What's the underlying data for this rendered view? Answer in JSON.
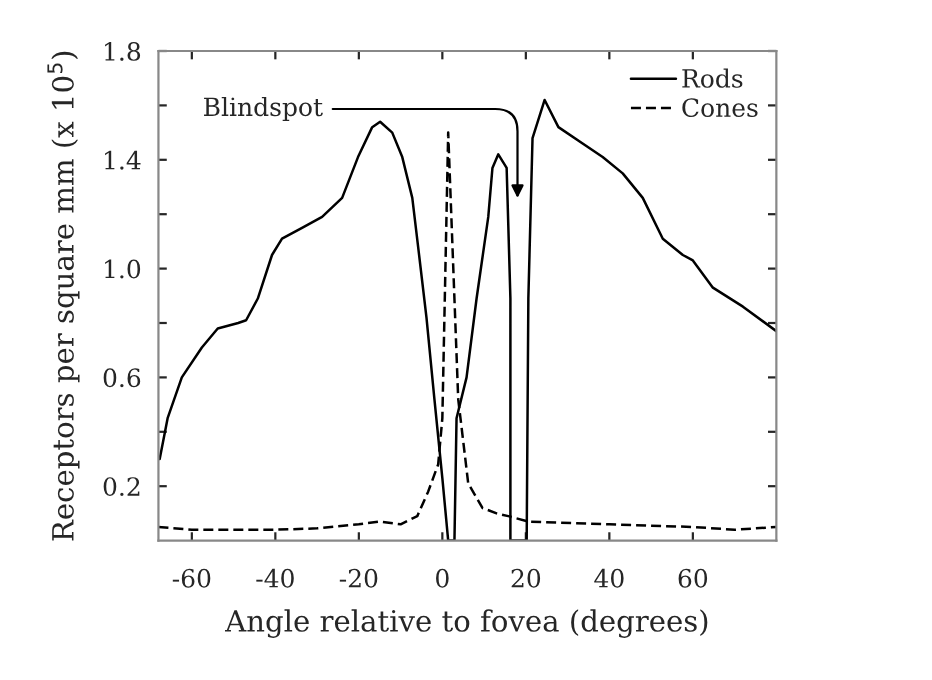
{
  "chart_data": {
    "type": "line",
    "xlabel": "Angle relative to fovea (degrees)",
    "ylabel": "Receptors per square mm (x 10$^{5}$)",
    "xlim": [
      -68,
      80
    ],
    "ylim": [
      0,
      1.8
    ],
    "xticks": [
      -60,
      -40,
      -20,
      0,
      20,
      40,
      60
    ],
    "yticks": [
      {
        "value": 0.2,
        "label": "0.2"
      },
      {
        "value": 0.4,
        "label": null
      },
      {
        "value": 0.6,
        "label": "0.6"
      },
      {
        "value": 0.8,
        "label": null
      },
      {
        "value": 1.0,
        "label": "1.0"
      },
      {
        "value": 1.2,
        "label": null
      },
      {
        "value": 1.4,
        "label": "1.4"
      },
      {
        "value": 1.6,
        "label": null
      },
      {
        "value": 1.8,
        "label": "1.8"
      }
    ],
    "grid": false,
    "legend": "top right",
    "annotations": [
      {
        "text": "Blindspot",
        "x": 18,
        "y": 1.26
      }
    ],
    "series": [
      {
        "name": "Rods",
        "color": "#000000",
        "line_style": "solid",
        "x": [
          -67.7,
          -65.8,
          -62.4,
          -57.6,
          -53.8,
          -48.9,
          -47,
          -44.2,
          -40.8,
          -38.4,
          -33.6,
          -28.8,
          -24,
          -20.2,
          -16.8,
          -14.9,
          -12,
          -9.6,
          -7.2,
          -5.8,
          -3.8,
          -1.9,
          0,
          1.4,
          2.9,
          3.4,
          5.8,
          8.2,
          11,
          12,
          13.4,
          15.4,
          16.3,
          16.3,
          20.2,
          20.6,
          21.6,
          24.5,
          27.8,
          33.6,
          38.4,
          43.2,
          48,
          52.8,
          57.6,
          60,
          64.8,
          72,
          80
        ],
        "values": [
          0.3,
          0.45,
          0.6,
          0.71,
          0.78,
          0.8,
          0.81,
          0.89,
          1.05,
          1.11,
          1.15,
          1.19,
          1.26,
          1.41,
          1.52,
          1.54,
          1.5,
          1.41,
          1.26,
          1.08,
          0.82,
          0.52,
          0.23,
          0,
          0,
          0.45,
          0.6,
          0.89,
          1.19,
          1.37,
          1.42,
          1.37,
          0.89,
          0,
          0,
          0.89,
          1.48,
          1.62,
          1.52,
          1.46,
          1.41,
          1.35,
          1.26,
          1.11,
          1.05,
          1.03,
          0.93,
          0.86,
          0.77
        ]
      },
      {
        "name": "Cones",
        "color": "#000000",
        "line_style": "dashed",
        "x": [
          -68,
          -60,
          -40,
          -30,
          -20,
          -15,
          -10,
          -6,
          -3.4,
          -1,
          0,
          1.4,
          3.8,
          6.2,
          9.6,
          13,
          15.8,
          20.6,
          40,
          60,
          70,
          80
        ],
        "values": [
          0.05,
          0.04,
          0.04,
          0.045,
          0.06,
          0.07,
          0.06,
          0.09,
          0.18,
          0.28,
          0.45,
          1.5,
          0.52,
          0.21,
          0.12,
          0.1,
          0.09,
          0.07,
          0.06,
          0.05,
          0.04,
          0.05
        ]
      }
    ]
  }
}
